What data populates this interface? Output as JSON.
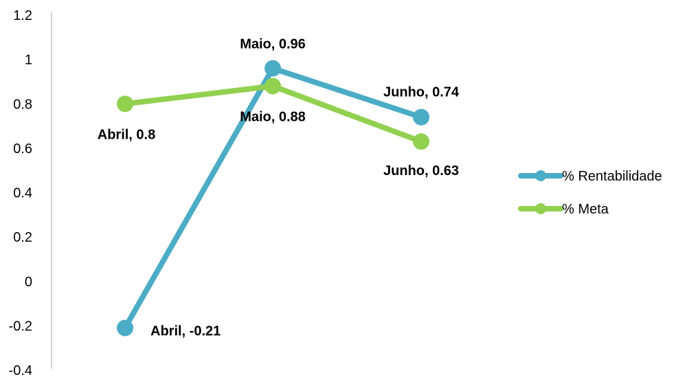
{
  "chart_data": {
    "type": "line",
    "categories": [
      "Abril",
      "Maio",
      "Junho"
    ],
    "ylim": [
      -0.4,
      1.2
    ],
    "yticks": [
      "1.2",
      "1",
      "0.8",
      "0.6",
      "0.4",
      "0.2",
      "0",
      "-0.2",
      "-0.4"
    ],
    "grid": false,
    "legend_position": "right",
    "series": [
      {
        "name": "% Rentabilidade",
        "color": "#4BACC6",
        "values": [
          -0.21,
          0.96,
          0.74
        ],
        "labels": [
          "Abril, -0.21",
          "Maio, 0.96",
          "Junho, 0.74"
        ]
      },
      {
        "name": "% Meta",
        "color": "#92D050",
        "values": [
          0.8,
          0.88,
          0.63
        ],
        "labels": [
          "Abril, 0.8",
          "Maio, 0.88",
          "Junho, 0.63"
        ]
      }
    ]
  }
}
